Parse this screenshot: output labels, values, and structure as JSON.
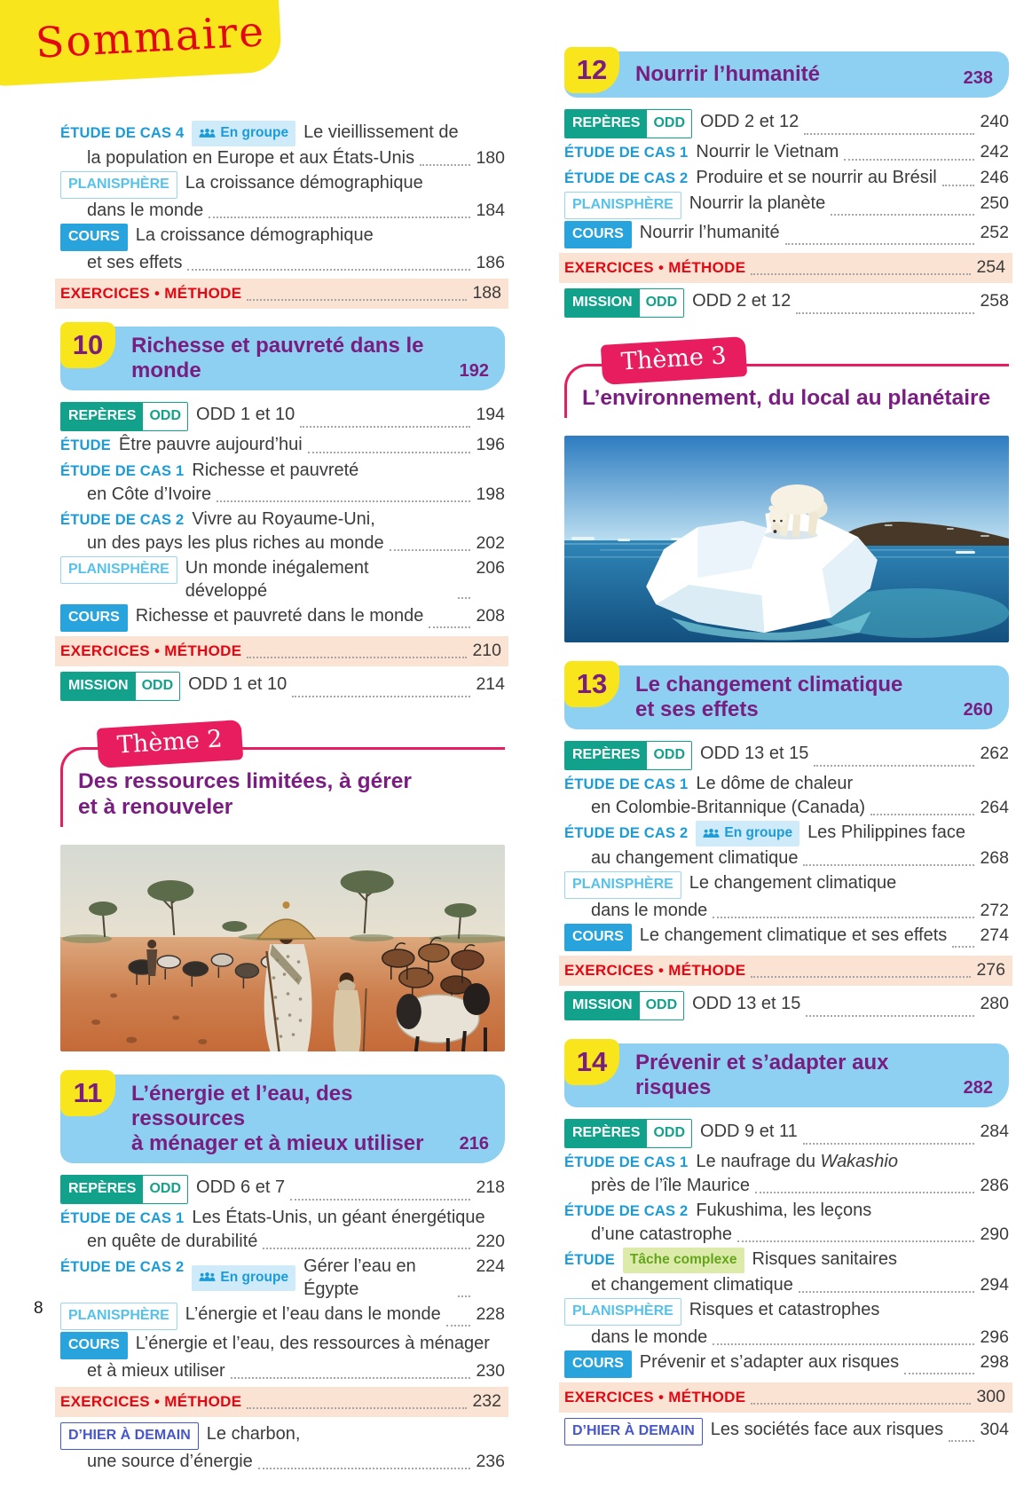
{
  "sommaire": {
    "title": "Sommaire"
  },
  "footer": {
    "page_number": "8"
  },
  "colors": {
    "accent_yellow": "#f9e51c",
    "accent_red": "#e30613",
    "banner_blue": "#8dd0f2",
    "title_purple": "#791e80",
    "label_blue": "#1b9cd8",
    "cours_blue": "#29a3dc",
    "planisphere_blue": "#56c2e9",
    "teal": "#12a28c",
    "exercices_bg": "#fbe3d3",
    "theme_pink": "#e81d5f",
    "indigo": "#4757c5",
    "tache_green": "#64a51d",
    "tache_bg": "#dcebaa",
    "groupe_bg": "#cfeaf8"
  },
  "columns": {
    "left": {
      "sections": [
        {
          "type": "entries",
          "entries": [
            {
              "type": "item",
              "label": {
                "style": "case",
                "text": "ÉTUDE DE CAS 4"
              },
              "tags": [
                {
                  "style": "groupe",
                  "text": "En groupe"
                }
              ],
              "line1": "Le vieillissement de",
              "line2": "la population en Europe et aux États-Unis",
              "page": "180"
            },
            {
              "type": "item",
              "label": {
                "style": "outline",
                "text": "PLANISPHÈRE"
              },
              "line1": "La croissance démographique",
              "line2": "dans le monde",
              "page": "184"
            },
            {
              "type": "item",
              "label": {
                "style": "solid",
                "text": "COURS"
              },
              "line1": "La croissance démographique",
              "line2": "et ses effets",
              "page": "186"
            },
            {
              "type": "exercices",
              "text": "EXERCICES • MÉTHODE",
              "page": "188"
            }
          ]
        },
        {
          "type": "chapter",
          "number": "10",
          "title_lines": [
            "Richesse et pauvreté dans le monde"
          ],
          "page": "192",
          "entries": [
            {
              "type": "item",
              "label": {
                "style": "teal",
                "text": "REPÈRES",
                "attach": "ODD"
              },
              "line1": "ODD 1 et 10",
              "page": "194"
            },
            {
              "type": "item",
              "label": {
                "style": "case",
                "text": "ÉTUDE"
              },
              "line1": "Être pauvre aujourd’hui",
              "page": "196"
            },
            {
              "type": "item",
              "label": {
                "style": "case",
                "text": "ÉTUDE DE CAS 1"
              },
              "line1": "Richesse et pauvreté",
              "line2": "en Côte d’Ivoire",
              "page": "198"
            },
            {
              "type": "item",
              "label": {
                "style": "case",
                "text": "ÉTUDE DE CAS 2"
              },
              "line1": "Vivre au Royaume-Uni,",
              "line2": "un des pays les plus riches au monde",
              "page": "202"
            },
            {
              "type": "item",
              "label": {
                "style": "outline",
                "text": "PLANISPHÈRE"
              },
              "line1": "Un monde inégalement développé",
              "page": "206"
            },
            {
              "type": "item",
              "label": {
                "style": "solid",
                "text": "COURS"
              },
              "line1": "Richesse et pauvreté dans le monde",
              "page": "208"
            },
            {
              "type": "exercices",
              "text": "EXERCICES • MÉTHODE",
              "page": "210"
            },
            {
              "type": "item",
              "label": {
                "style": "teal",
                "text": "MISSION",
                "attach": "ODD"
              },
              "line1": "ODD 1 et 10",
              "page": "214"
            }
          ]
        },
        {
          "type": "theme",
          "label": "Thème 2",
          "title_lines": [
            "Des ressources limitées, à gérer",
            "et à renouveler"
          ]
        },
        {
          "type": "image",
          "image": "sahel",
          "name": "sahel-herders-photo"
        },
        {
          "type": "chapter",
          "number": "11",
          "title_lines": [
            "L’énergie et l’eau, des ressources",
            "à ménager et à mieux utiliser"
          ],
          "page": "216",
          "entries": [
            {
              "type": "item",
              "label": {
                "style": "teal",
                "text": "REPÈRES",
                "attach": "ODD"
              },
              "line1": "ODD 6 et 7",
              "page": "218"
            },
            {
              "type": "item",
              "label": {
                "style": "case",
                "text": "ÉTUDE DE CAS 1"
              },
              "line1": "Les États-Unis, un géant énergétique",
              "line2": "en quête de durabilité",
              "page": "220"
            },
            {
              "type": "item",
              "label": {
                "style": "case",
                "text": "ÉTUDE DE CAS 2"
              },
              "tags": [
                {
                  "style": "groupe",
                  "text": "En groupe"
                }
              ],
              "line1": "Gérer l’eau en Égypte",
              "page": "224"
            },
            {
              "type": "item",
              "label": {
                "style": "outline",
                "text": "PLANISPHÈRE"
              },
              "line1": "L’énergie et l’eau dans le monde",
              "page": "228"
            },
            {
              "type": "item",
              "label": {
                "style": "solid",
                "text": "COURS"
              },
              "line1": "L’énergie et l’eau, des ressources à ménager",
              "line2": "et à mieux utiliser",
              "page": "230"
            },
            {
              "type": "exercices",
              "text": "EXERCICES • MÉTHODE",
              "page": "232"
            },
            {
              "type": "item",
              "label": {
                "style": "indigo",
                "text": "D’HIER À DEMAIN"
              },
              "line1": "Le charbon,",
              "line2": "une source d’énergie",
              "page": "236"
            }
          ]
        }
      ]
    },
    "right": {
      "sections": [
        {
          "type": "chapter",
          "number": "12",
          "title_lines": [
            "Nourrir l’humanité"
          ],
          "page": "238",
          "entries": [
            {
              "type": "item",
              "label": {
                "style": "teal",
                "text": "REPÈRES",
                "attach": "ODD"
              },
              "line1": "ODD 2 et 12",
              "page": "240"
            },
            {
              "type": "item",
              "label": {
                "style": "case",
                "text": "ÉTUDE DE CAS 1"
              },
              "line1": "Nourrir le Vietnam",
              "page": "242"
            },
            {
              "type": "item",
              "label": {
                "style": "case",
                "text": "ÉTUDE DE CAS 2"
              },
              "line1": "Produire et se nourrir au Brésil",
              "page": "246"
            },
            {
              "type": "item",
              "label": {
                "style": "outline",
                "text": "PLANISPHÈRE"
              },
              "line1": "Nourrir la planète",
              "page": "250"
            },
            {
              "type": "item",
              "label": {
                "style": "solid",
                "text": "COURS"
              },
              "line1": "Nourrir l’humanité",
              "page": "252"
            },
            {
              "type": "exercices",
              "text": "EXERCICES • MÉTHODE",
              "page": "254"
            },
            {
              "type": "item",
              "label": {
                "style": "teal",
                "text": "MISSION",
                "attach": "ODD"
              },
              "line1": "ODD 2 et 12",
              "page": "258"
            }
          ]
        },
        {
          "type": "theme",
          "label": "Thème 3",
          "title_lines": [
            "L’environnement, du local au planétaire"
          ]
        },
        {
          "type": "image",
          "image": "polar",
          "name": "polar-bear-photo"
        },
        {
          "type": "chapter",
          "number": "13",
          "title_lines": [
            "Le changement climatique",
            "et ses effets"
          ],
          "page": "260",
          "entries": [
            {
              "type": "item",
              "label": {
                "style": "teal",
                "text": "REPÈRES",
                "attach": "ODD"
              },
              "line1": "ODD 13 et 15",
              "page": "262"
            },
            {
              "type": "item",
              "label": {
                "style": "case",
                "text": "ÉTUDE DE CAS 1"
              },
              "line1": "Le dôme de chaleur",
              "line2": "en Colombie-Britannique (Canada)",
              "page": "264"
            },
            {
              "type": "item",
              "label": {
                "style": "case",
                "text": "ÉTUDE DE CAS 2"
              },
              "tags": [
                {
                  "style": "groupe",
                  "text": "En groupe"
                }
              ],
              "line1": "Les Philippines face",
              "line2": "au changement climatique",
              "page": "268"
            },
            {
              "type": "item",
              "label": {
                "style": "outline",
                "text": "PLANISPHÈRE"
              },
              "line1": "Le changement climatique",
              "line2": "dans le monde",
              "page": "272"
            },
            {
              "type": "item",
              "label": {
                "style": "solid",
                "text": "COURS"
              },
              "line1": "Le changement climatique et ses effets",
              "page": "274"
            },
            {
              "type": "exercices",
              "text": "EXERCICES • MÉTHODE",
              "page": "276"
            },
            {
              "type": "item",
              "label": {
                "style": "teal",
                "text": "MISSION",
                "attach": "ODD"
              },
              "line1": "ODD 13 et 15",
              "page": "280"
            }
          ]
        },
        {
          "type": "chapter",
          "number": "14",
          "title_lines": [
            "Prévenir et s’adapter aux risques"
          ],
          "page": "282",
          "entries": [
            {
              "type": "item",
              "label": {
                "style": "teal",
                "text": "REPÈRES",
                "attach": "ODD"
              },
              "line1": "ODD 9 et 11",
              "page": "284"
            },
            {
              "type": "item",
              "label": {
                "style": "case",
                "text": "ÉTUDE DE CAS 1"
              },
              "line1": "Le naufrage du *Wakashio*",
              "line2": "près de l’île Maurice",
              "page": "286"
            },
            {
              "type": "item",
              "label": {
                "style": "case",
                "text": "ÉTUDE DE CAS 2"
              },
              "line1": "Fukushima, les leçons",
              "line2": "d’une catastrophe",
              "page": "290"
            },
            {
              "type": "item",
              "label": {
                "style": "case",
                "text": "ÉTUDE"
              },
              "tags": [
                {
                  "style": "tache",
                  "text": "Tâche complexe"
                }
              ],
              "line1": "Risques sanitaires",
              "line2": "et changement climatique",
              "page": "294"
            },
            {
              "type": "item",
              "label": {
                "style": "outline",
                "text": "PLANISPHÈRE"
              },
              "line1": "Risques et catastrophes",
              "line2": "dans le monde",
              "page": "296"
            },
            {
              "type": "item",
              "label": {
                "style": "solid",
                "text": "COURS"
              },
              "line1": "Prévenir et s’adapter aux risques",
              "page": "298"
            },
            {
              "type": "exercices",
              "text": "EXERCICES • MÉTHODE",
              "page": "300"
            },
            {
              "type": "item",
              "label": {
                "style": "indigo",
                "text": "D’HIER À DEMAIN"
              },
              "line1": "Les sociétés face aux risques",
              "page": "304"
            }
          ]
        }
      ]
    }
  }
}
